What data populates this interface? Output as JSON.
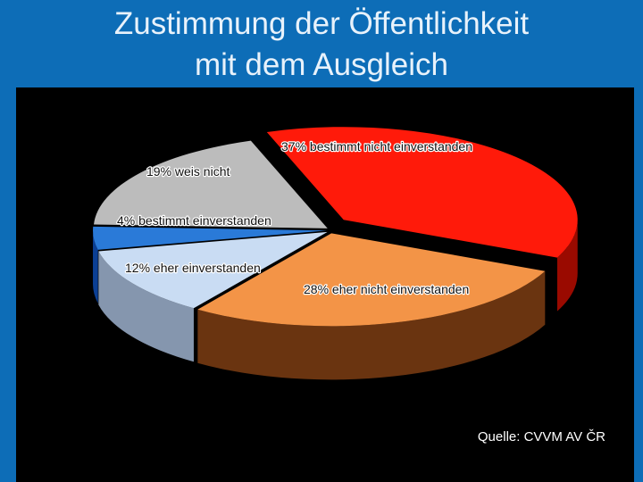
{
  "slide": {
    "title_line1": "Zustimmung der Öffentlichkeit",
    "title_line2": "mit dem Ausgleich"
  },
  "source": "Quelle: CVVM AV ČR",
  "chart_data": {
    "type": "pie",
    "style": "3d-exploded",
    "slices": [
      {
        "label": "37% bestimmt nicht einverstanden",
        "value": 37,
        "color": "#ff1a0a",
        "side": "#9a0a00"
      },
      {
        "label": "28% eher nicht einverstanden",
        "value": 28,
        "color": "#f39447",
        "side": "#6a3410"
      },
      {
        "label": "12% eher einverstanden",
        "value": 12,
        "color": "#c9dcf3",
        "side": "#8596ae"
      },
      {
        "label": "4%   bestimmt einverstanden",
        "value": 4,
        "color": "#2a7ad8",
        "side": "#0b3f94"
      },
      {
        "label": "19% weis nicht",
        "value": 19,
        "color": "#bcbcbc",
        "side": "#7c7c7c"
      }
    ]
  }
}
